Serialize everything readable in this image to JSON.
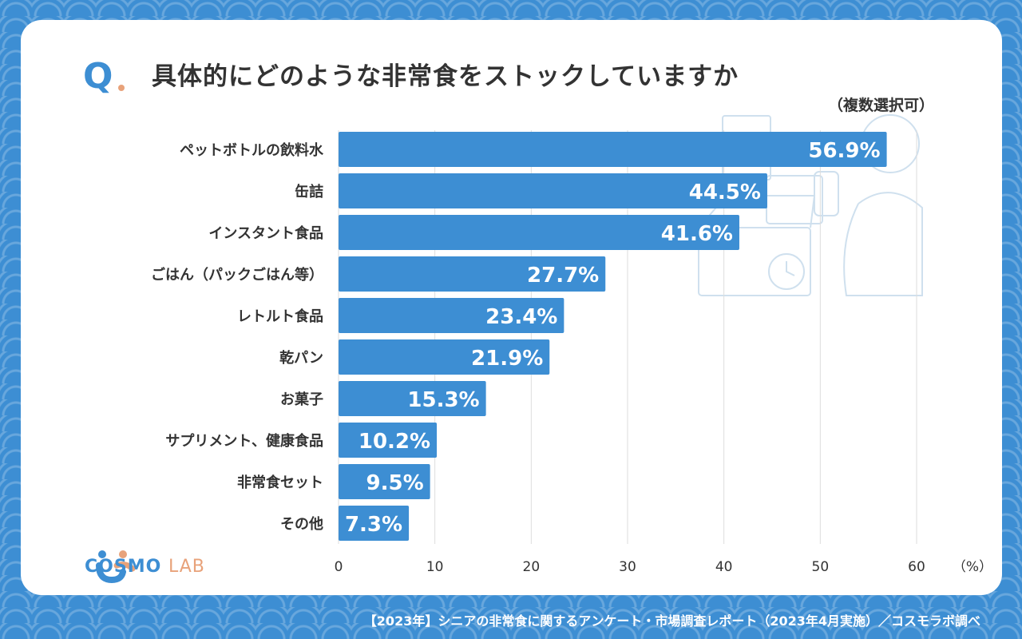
{
  "header": {
    "q_mark": "Q",
    "title": "具体的にどのような非常食をストックしていますか",
    "subtitle": "（複数選択可）"
  },
  "brand": {
    "logo_text_main": "COSMO",
    "logo_text_sub": "LAB"
  },
  "footer": {
    "source": "【2023年】シニアの非常食に関するアンケート・市場調査レポート（2023年4月実施）／コスモラボ調べ"
  },
  "colors": {
    "bar": "#3d8ed3",
    "background": "#3d8ed3",
    "accent": "#e8a27a",
    "text": "#333333",
    "grid": "#dddddd"
  },
  "chart_data": {
    "type": "bar",
    "orientation": "horizontal",
    "categories": [
      "ペットボトルの飲料水",
      "缶詰",
      "インスタント食品",
      "ごはん（パックごはん等）",
      "レトルト食品",
      "乾パン",
      "お菓子",
      "サプリメント、健康食品",
      "非常食セット",
      "その他"
    ],
    "values": [
      56.9,
      44.5,
      41.6,
      27.7,
      23.4,
      21.9,
      15.3,
      10.2,
      9.5,
      7.3
    ],
    "value_labels": [
      "56.9%",
      "44.5%",
      "41.6%",
      "27.7%",
      "23.4%",
      "21.9%",
      "15.3%",
      "10.2%",
      "9.5%",
      "7.3%"
    ],
    "x_ticks": [
      "0",
      "10",
      "20",
      "30",
      "40",
      "50",
      "60"
    ],
    "x_unit": "（%）",
    "xlim": [
      0,
      60
    ],
    "grid": "vertical"
  }
}
